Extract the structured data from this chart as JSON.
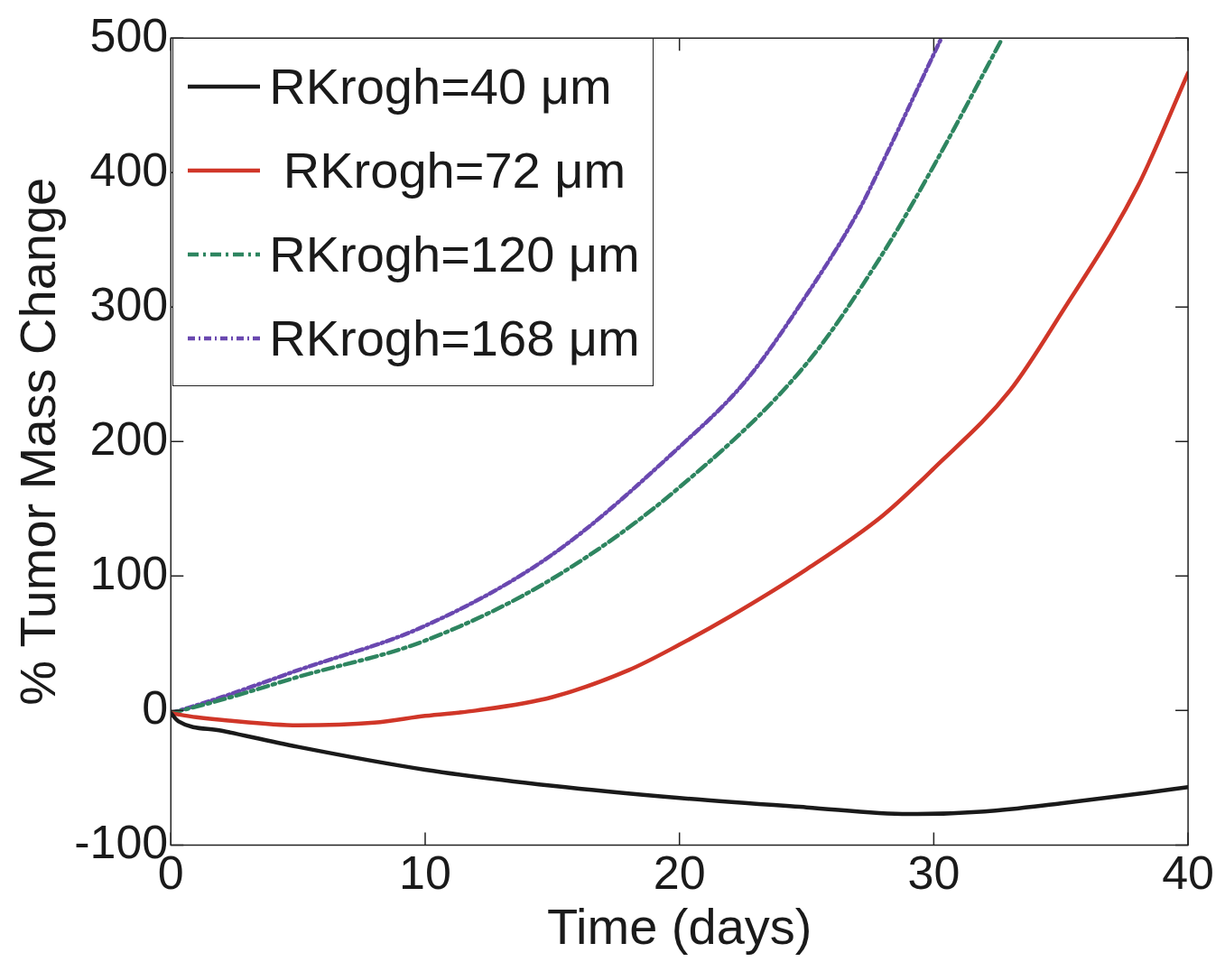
{
  "chart_data": {
    "type": "line",
    "xlabel": "Time (days)",
    "ylabel": "% Tumor Mass Change",
    "xlim": [
      0,
      40
    ],
    "ylim": [
      -100,
      500
    ],
    "xticks": [
      0,
      10,
      20,
      30,
      40
    ],
    "yticks": [
      -100,
      0,
      100,
      200,
      300,
      400,
      500
    ],
    "grid": false,
    "legend": "top left",
    "marker": "none",
    "series": [
      {
        "name": "RKrogh=40 μm",
        "color": "#1a1a1a",
        "line_style": "solid",
        "x": [
          0,
          0.3,
          2,
          5,
          10,
          15,
          20,
          25,
          29,
          32,
          35,
          38,
          40
        ],
        "values": [
          -2,
          -8,
          -15,
          -27,
          -44,
          -56,
          -65,
          -72,
          -77,
          -75,
          -69,
          -62,
          -57
        ]
      },
      {
        "name": " RKrogh=72 μm",
        "color": "#d03628",
        "line_style": "solid",
        "x": [
          0,
          1,
          2,
          5,
          8,
          10,
          12,
          15,
          18,
          20,
          22,
          25,
          28,
          30,
          33,
          35,
          38,
          40
        ],
        "values": [
          -2,
          -5,
          -7,
          -11,
          -9,
          -4,
          0,
          10,
          30,
          49,
          70,
          105,
          145,
          180,
          238,
          295,
          389,
          474
        ]
      },
      {
        "name": "RKrogh=120 μm",
        "color": "#2e8560",
        "line_style": "dashed",
        "x": [
          0,
          2,
          5,
          10,
          15,
          20,
          25,
          28,
          30,
          32.7
        ],
        "values": [
          -2,
          8,
          25,
          52,
          98,
          166,
          258,
          340,
          405,
          500
        ]
      },
      {
        "name": "RKrogh=168 μm",
        "color": "#6a48b0",
        "line_style": "dotted",
        "x": [
          0,
          2,
          5,
          10,
          15,
          20,
          22.6,
          25,
          27,
          28,
          30,
          30.3
        ],
        "values": [
          -2,
          10,
          30,
          63,
          116,
          196,
          245,
          309,
          370,
          408,
          488,
          500
        ]
      }
    ]
  }
}
